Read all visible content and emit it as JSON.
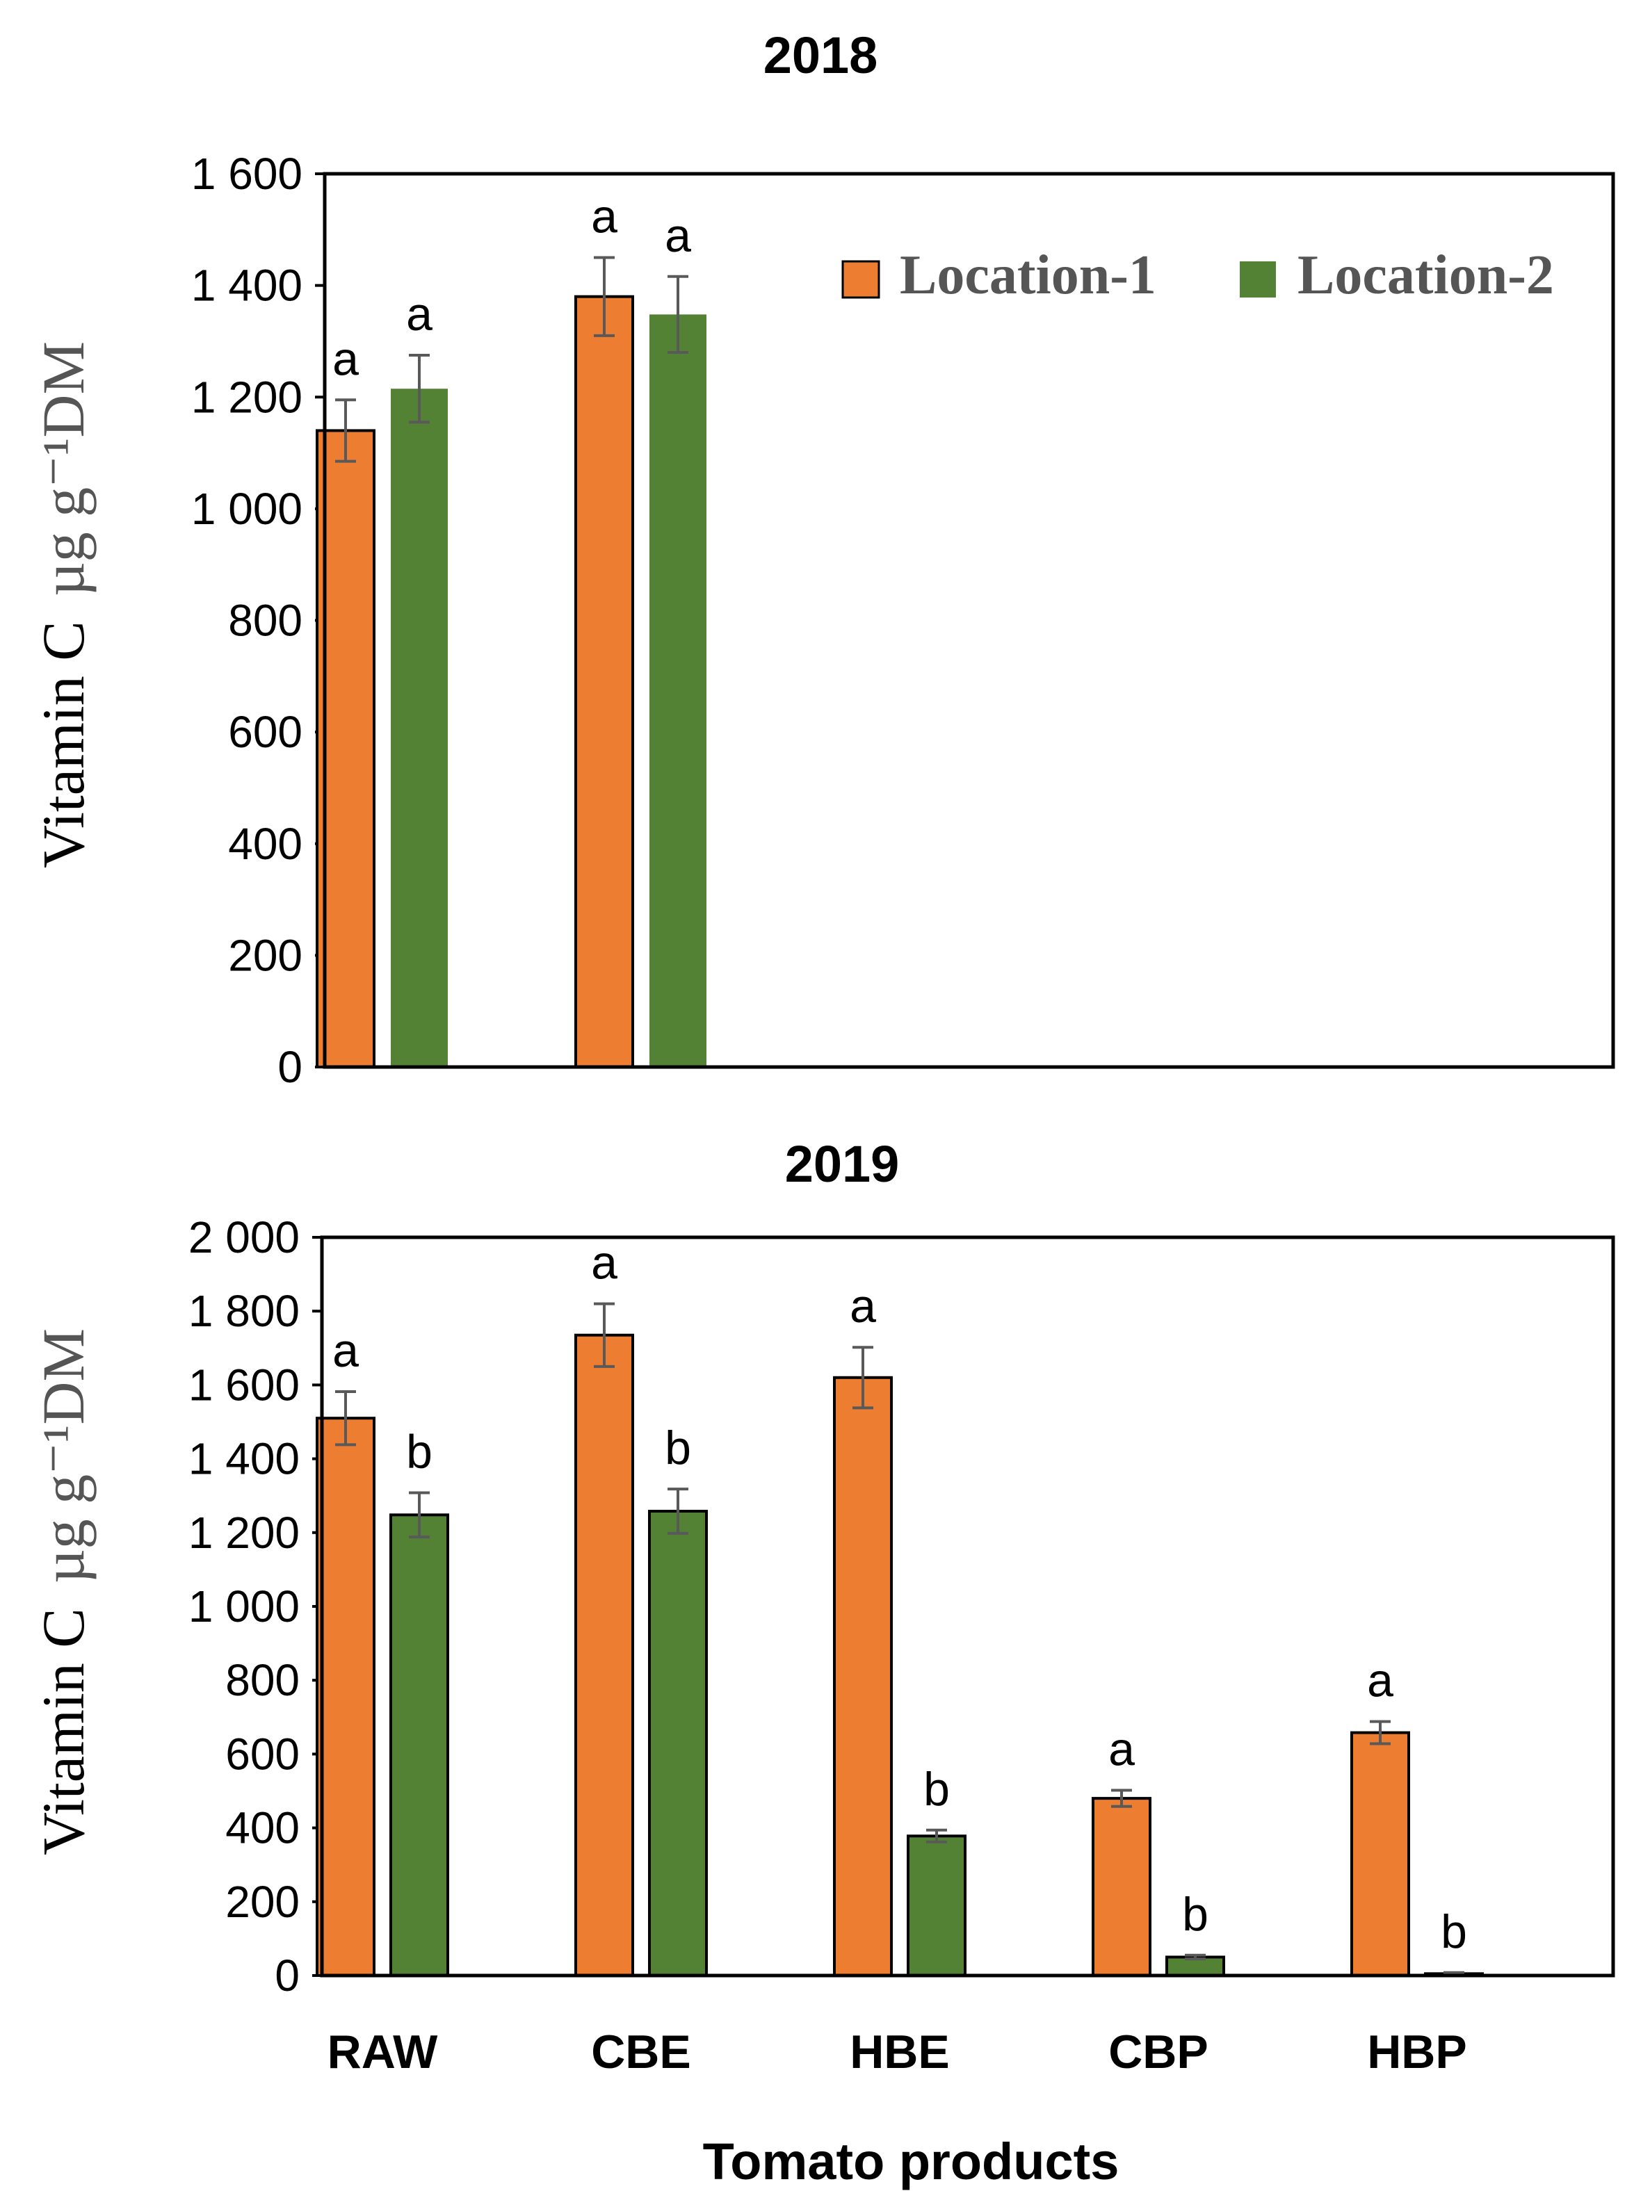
{
  "chart_data": [
    {
      "type": "bar",
      "title": "2018",
      "ylabel": "Vitamin C",
      "ylabel_unit": "µg g⁻¹DM",
      "xlabel": "",
      "ylim": [
        0,
        1600
      ],
      "yticks": [
        0,
        200,
        400,
        600,
        800,
        1000,
        1200,
        1400,
        1600
      ],
      "ytick_labels": [
        "0",
        "200",
        "400",
        "600",
        "800",
        "1 000",
        "1 200",
        "1 400",
        "1 600"
      ],
      "categories": [
        "RAW",
        "CBE",
        "HBE",
        "CBP",
        "HBP"
      ],
      "show_x_tick_labels": false,
      "legend": {
        "position": "top-right",
        "entries": [
          "Location-1",
          "Location-2"
        ]
      },
      "series": [
        {
          "name": "Location-1",
          "color": "#ED7D31",
          "values": [
            1140,
            1380,
            0,
            0,
            0
          ],
          "errors": [
            55,
            70,
            0,
            0,
            0
          ],
          "letters": [
            "a",
            "a",
            "",
            "",
            ""
          ]
        },
        {
          "name": "Location-2",
          "color": "#548235",
          "values": [
            1215,
            1348,
            0,
            0,
            0
          ],
          "errors": [
            60,
            68,
            0,
            0,
            0
          ],
          "letters": [
            "a",
            "a",
            "",
            "",
            ""
          ]
        }
      ]
    },
    {
      "type": "bar",
      "title": "2019",
      "ylabel": "Vitamin C",
      "ylabel_unit": "µg g⁻¹DM",
      "xlabel": "Tomato products",
      "ylim": [
        0,
        2000
      ],
      "yticks": [
        0,
        200,
        400,
        600,
        800,
        1000,
        1200,
        1400,
        1600,
        1800,
        2000
      ],
      "ytick_labels": [
        "0",
        "200",
        "400",
        "600",
        "800",
        "1 000",
        "1 200",
        "1 400",
        "1 600",
        "1 800",
        "2 000"
      ],
      "categories": [
        "RAW",
        "CBE",
        "HBE",
        "CBP",
        "HBP"
      ],
      "show_x_tick_labels": true,
      "series": [
        {
          "name": "Location-1",
          "color": "#ED7D31",
          "values": [
            1510,
            1735,
            1620,
            480,
            658
          ],
          "errors": [
            72,
            85,
            82,
            22,
            30
          ],
          "letters": [
            "a",
            "a",
            "a",
            "a",
            "a"
          ]
        },
        {
          "name": "Location-2",
          "color": "#548235",
          "values": [
            1248,
            1258,
            378,
            50,
            5
          ],
          "errors": [
            60,
            60,
            16,
            5,
            3
          ],
          "letters": [
            "b",
            "b",
            "b",
            "b",
            "b"
          ]
        }
      ]
    }
  ]
}
